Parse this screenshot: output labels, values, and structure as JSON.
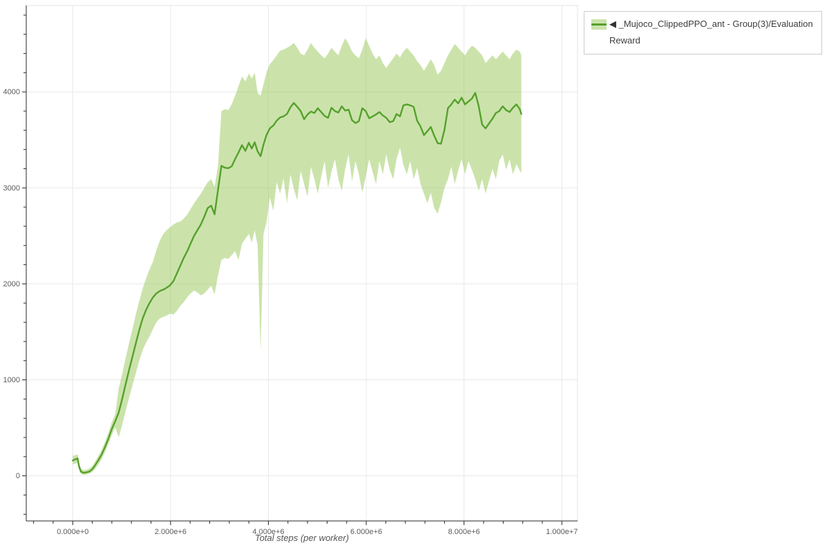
{
  "colors": {
    "line": "#55a02c",
    "band_solid": "#cbe3ab",
    "band_overlay": "#97c757",
    "grid": "#e8e8e8",
    "frame_outline": "#e3e3e3",
    "axis": "#262626",
    "tick_label": "#5c5c5c",
    "axis_title": "#555555",
    "legend_border": "#cccccc",
    "background": "#ffffff"
  },
  "legend": {
    "items": [
      {
        "marker": "◀",
        "label": "_Mujoco_ClippedPPO_ant - Group(3)/Evaluation Reward",
        "series_color": "#55a02c",
        "band_color": "#cbe3ab"
      }
    ]
  },
  "chart_data": {
    "type": "line",
    "title": "",
    "grid": true,
    "legend_position": "top-right-outside",
    "x_axis": {
      "label": "Total steps (per worker)",
      "range": [
        -950000,
        10320000
      ],
      "minor_step": 400000,
      "major_ticks": [
        {
          "value": 0,
          "label": "0.000e+0"
        },
        {
          "value": 2000000,
          "label": "2.000e+6"
        },
        {
          "value": 4000000,
          "label": "4.000e+6"
        },
        {
          "value": 6000000,
          "label": "6.000e+6"
        },
        {
          "value": 8000000,
          "label": "8.000e+6"
        },
        {
          "value": 10000000,
          "label": "1.000e+7"
        }
      ]
    },
    "y_axis": {
      "label": "",
      "range": [
        -470,
        4900
      ],
      "minor_step": 200,
      "major_ticks": [
        {
          "value": 0,
          "label": "0"
        },
        {
          "value": 1000,
          "label": "1000"
        },
        {
          "value": 2000,
          "label": "2000"
        },
        {
          "value": 3000,
          "label": "3000"
        },
        {
          "value": 4000,
          "label": "4000"
        }
      ]
    },
    "series": [
      {
        "name": "_Mujoco_ClippedPPO_ant - Group(3)/Evaluation Reward",
        "color": "#55a02c",
        "band_color": "#97c757",
        "band_opacity": 0.5,
        "x": [
          0,
          50000,
          100000,
          130000,
          170000,
          220000,
          280000,
          340000,
          400000,
          460000,
          520000,
          590000,
          660000,
          730000,
          800000,
          870000,
          940000,
          1010000,
          1080000,
          1150000,
          1220000,
          1290000,
          1360000,
          1430000,
          1500000,
          1570000,
          1640000,
          1710000,
          1780000,
          1850000,
          1920000,
          1990000,
          2060000,
          2130000,
          2200000,
          2270000,
          2340000,
          2410000,
          2480000,
          2550000,
          2620000,
          2690000,
          2760000,
          2830000,
          2900000,
          2970000,
          3040000,
          3110000,
          3180000,
          3250000,
          3320000,
          3390000,
          3460000,
          3530000,
          3600000,
          3660000,
          3720000,
          3780000,
          3840000,
          3900000,
          3960000,
          4030000,
          4100000,
          4170000,
          4240000,
          4310000,
          4380000,
          4450000,
          4520000,
          4590000,
          4660000,
          4730000,
          4800000,
          4870000,
          4940000,
          5010000,
          5080000,
          5150000,
          5220000,
          5290000,
          5360000,
          5430000,
          5500000,
          5570000,
          5640000,
          5710000,
          5780000,
          5850000,
          5920000,
          5990000,
          6060000,
          6130000,
          6200000,
          6270000,
          6340000,
          6410000,
          6480000,
          6550000,
          6620000,
          6690000,
          6760000,
          6830000,
          6900000,
          6970000,
          7040000,
          7110000,
          7180000,
          7250000,
          7320000,
          7390000,
          7460000,
          7530000,
          7600000,
          7670000,
          7740000,
          7810000,
          7880000,
          7950000,
          8020000,
          8090000,
          8160000,
          8230000,
          8300000,
          8370000,
          8440000,
          8510000,
          8580000,
          8650000,
          8720000,
          8790000,
          8860000,
          8930000,
          9000000,
          9070000,
          9140000,
          9170000
        ],
        "mean": [
          160,
          172,
          182,
          95,
          45,
          32,
          36,
          45,
          70,
          110,
          160,
          220,
          300,
          390,
          490,
          570,
          660,
          800,
          950,
          1100,
          1240,
          1380,
          1520,
          1640,
          1730,
          1800,
          1860,
          1900,
          1925,
          1940,
          1960,
          1985,
          2030,
          2110,
          2190,
          2270,
          2340,
          2420,
          2500,
          2560,
          2620,
          2700,
          2790,
          2815,
          2725,
          2980,
          3230,
          3210,
          3205,
          3225,
          3300,
          3370,
          3445,
          3385,
          3470,
          3410,
          3475,
          3380,
          3330,
          3450,
          3550,
          3620,
          3650,
          3700,
          3735,
          3745,
          3770,
          3840,
          3885,
          3845,
          3800,
          3715,
          3765,
          3795,
          3780,
          3830,
          3790,
          3750,
          3730,
          3835,
          3800,
          3785,
          3850,
          3805,
          3815,
          3705,
          3675,
          3695,
          3830,
          3800,
          3725,
          3745,
          3765,
          3790,
          3755,
          3730,
          3685,
          3695,
          3770,
          3745,
          3860,
          3870,
          3860,
          3845,
          3700,
          3640,
          3550,
          3590,
          3635,
          3545,
          3465,
          3460,
          3605,
          3830,
          3870,
          3920,
          3880,
          3940,
          3870,
          3900,
          3930,
          3990,
          3850,
          3660,
          3620,
          3670,
          3720,
          3780,
          3800,
          3850,
          3810,
          3790,
          3835,
          3870,
          3820,
          3770
        ],
        "band_lower": [
          118,
          128,
          136,
          58,
          18,
          10,
          14,
          22,
          40,
          72,
          118,
          172,
          248,
          332,
          425,
          505,
          400,
          530,
          670,
          810,
          940,
          1070,
          1200,
          1310,
          1390,
          1450,
          1530,
          1600,
          1640,
          1655,
          1670,
          1690,
          1680,
          1720,
          1770,
          1810,
          1860,
          1900,
          1930,
          1910,
          1880,
          1900,
          1940,
          1980,
          1890,
          2090,
          2250,
          2270,
          2260,
          2300,
          2340,
          2250,
          2420,
          2470,
          2520,
          2430,
          2560,
          2400,
          1300,
          2520,
          2640,
          2900,
          2760,
          3060,
          2940,
          3100,
          2840,
          3140,
          2990,
          2870,
          3180,
          3040,
          2910,
          3220,
          3090,
          2940,
          3120,
          3280,
          3000,
          3170,
          3300,
          3090,
          2970,
          3200,
          3350,
          3070,
          3280,
          3140,
          2950,
          3120,
          3300,
          3170,
          3040,
          3280,
          3140,
          3350,
          3190,
          3090,
          3300,
          3420,
          3240,
          3140,
          3280,
          3090,
          3210,
          3040,
          2940,
          2840,
          2950,
          2790,
          2730,
          2850,
          3000,
          3090,
          3220,
          3040,
          3180,
          3300,
          3140,
          3280,
          3190,
          3090,
          2970,
          3090,
          2940,
          3070,
          3200,
          3090,
          3280,
          3350,
          3190,
          3300,
          3140,
          3250,
          3180,
          3150
        ],
        "band_upper": [
          208,
          215,
          226,
          132,
          75,
          60,
          64,
          75,
          105,
          150,
          205,
          270,
          355,
          450,
          560,
          645,
          910,
          1060,
          1220,
          1380,
          1530,
          1680,
          1820,
          1950,
          2060,
          2150,
          2230,
          2350,
          2450,
          2520,
          2560,
          2590,
          2620,
          2640,
          2650,
          2680,
          2720,
          2780,
          2840,
          2890,
          2940,
          3000,
          3060,
          3090,
          3010,
          3230,
          3800,
          3820,
          3810,
          3870,
          3960,
          4060,
          4160,
          4110,
          4190,
          4140,
          4200,
          3990,
          3960,
          4080,
          4200,
          4290,
          4330,
          4380,
          4430,
          4440,
          4460,
          4480,
          4510,
          4460,
          4400,
          4380,
          4440,
          4510,
          4460,
          4420,
          4380,
          4350,
          4400,
          4460,
          4420,
          4380,
          4480,
          4560,
          4500,
          4420,
          4380,
          4350,
          4440,
          4560,
          4480,
          4400,
          4340,
          4380,
          4300,
          4250,
          4300,
          4350,
          4400,
          4360,
          4420,
          4460,
          4420,
          4380,
          4320,
          4280,
          4220,
          4280,
          4340,
          4280,
          4180,
          4220,
          4300,
          4380,
          4440,
          4500,
          4460,
          4420,
          4380,
          4440,
          4480,
          4460,
          4420,
          4380,
          4300,
          4340,
          4380,
          4340,
          4380,
          4420,
          4380,
          4340,
          4400,
          4440,
          4420,
          4380
        ]
      }
    ]
  }
}
